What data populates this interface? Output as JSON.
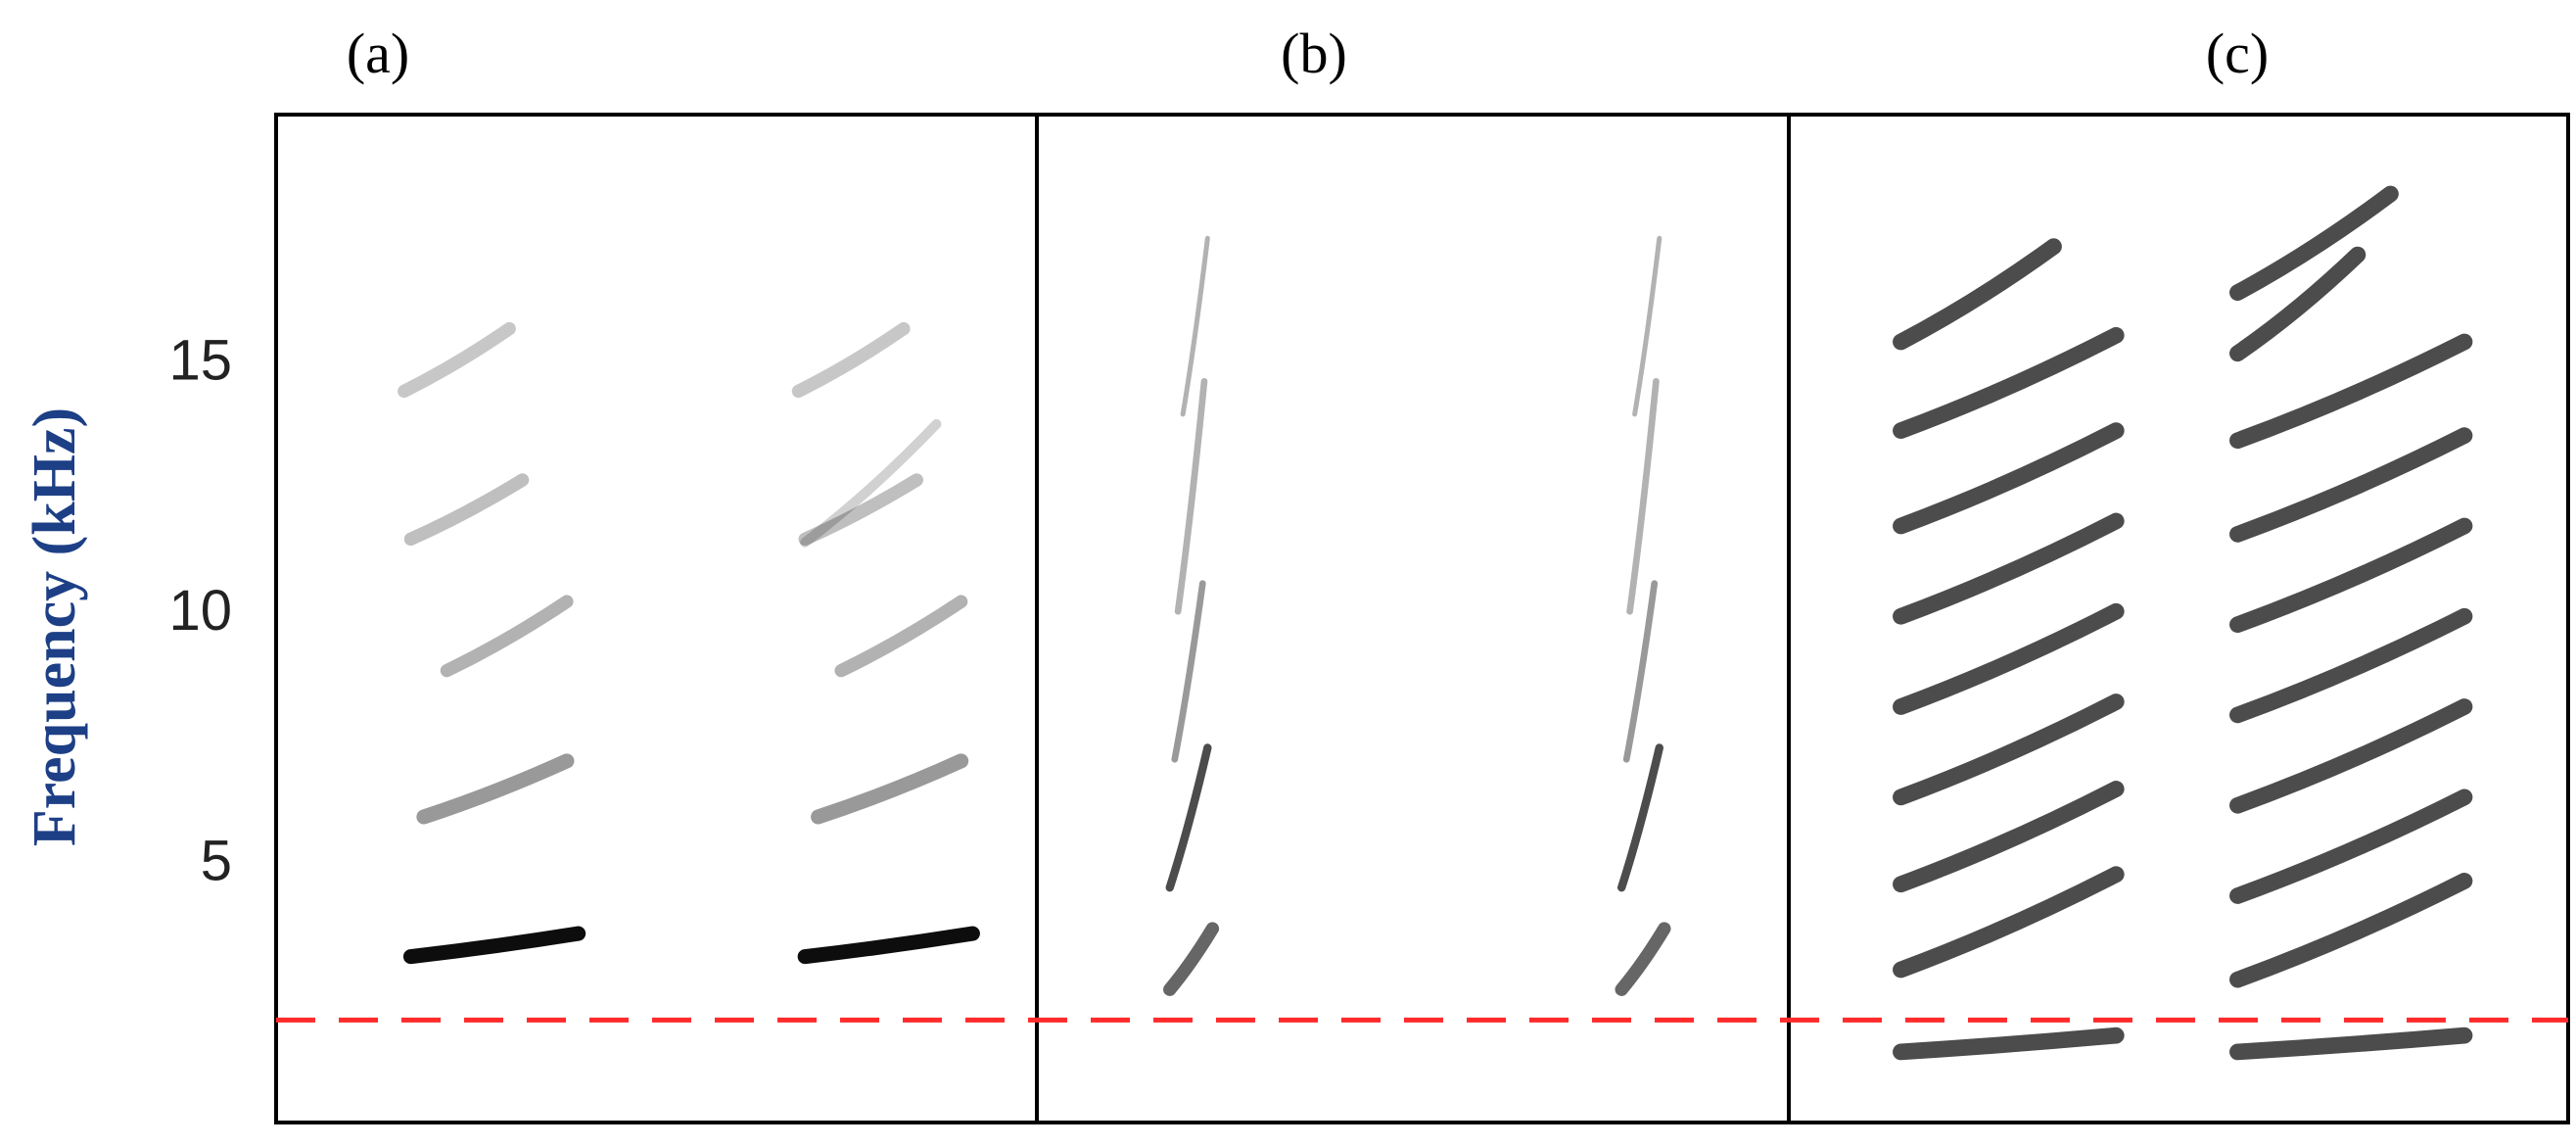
{
  "chart_data": {
    "type": "spectrogram",
    "panels": [
      "(a)",
      "(b)",
      "(c)"
    ],
    "y_label": "Frequency (kHz)",
    "ylim": [
      -0.15,
      20
    ],
    "yticks": [
      5,
      10,
      15
    ],
    "reference_line": {
      "value": 1.9,
      "color": "#ff2a2a",
      "style": "dashed"
    }
  }
}
